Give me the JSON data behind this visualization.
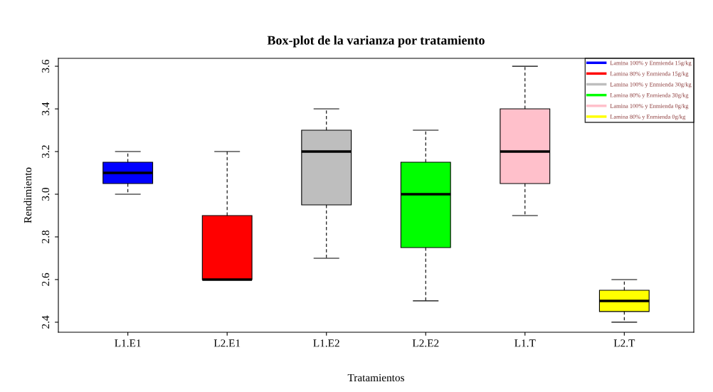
{
  "chart_data": {
    "type": "box",
    "title": "Box-plot de la varianza por tratamiento",
    "xlabel": "Tratamientos",
    "ylabel": "Rendimiento",
    "categories": [
      "L1.E1",
      "L2.E1",
      "L1.E2",
      "L2.E2",
      "L1.T",
      "L2.T"
    ],
    "ylim": [
      2.353,
      3.637
    ],
    "yticks": [
      2.4,
      2.6,
      2.8,
      {
        "value": 3.0,
        "label": "3.0"
      },
      3.2,
      3.4,
      3.6
    ],
    "grid": false,
    "legend": "top right",
    "series": [
      {
        "name": "Lamina 100% y Enmienda 15g/kg",
        "color": "#0000ff",
        "boxes": [
          {
            "low": 3.0,
            "q1": 3.05,
            "median": 3.1,
            "q3": 3.15,
            "high": 3.2
          },
          null,
          null,
          null,
          null,
          null
        ]
      },
      {
        "name": "Lamina 80% y Enmienda 15g/kg",
        "color": "#ff0000",
        "boxes": [
          null,
          {
            "low": 2.6,
            "q1": 2.6,
            "median": 2.6,
            "q3": 2.9,
            "high": 3.2
          },
          null,
          null,
          null,
          null
        ]
      },
      {
        "name": "Lamina 100% y Enmienda 30g/kg",
        "color": "#bebebe",
        "boxes": [
          null,
          null,
          {
            "low": 2.7,
            "q1": 2.95,
            "median": 3.2,
            "q3": 3.3,
            "high": 3.4
          },
          null,
          null,
          null
        ]
      },
      {
        "name": "Lamina 80% y Enmienda 30g/kg",
        "color": "#00ff00",
        "boxes": [
          null,
          null,
          null,
          {
            "low": 2.5,
            "q1": 2.75,
            "median": 3.0,
            "q3": 3.15,
            "high": 3.3
          },
          null,
          null
        ]
      },
      {
        "name": "Lamina 100% y Enmienda 0g/kg",
        "color": "#ffc0cb",
        "boxes": [
          null,
          null,
          null,
          null,
          {
            "low": 2.9,
            "q1": 3.05,
            "median": 3.2,
            "q3": 3.4,
            "high": 3.6
          },
          null
        ]
      },
      {
        "name": "Lamina 80% y Enmienda 0g/kg",
        "color": "#ffff00",
        "boxes": [
          null,
          null,
          null,
          null,
          null,
          {
            "low": 2.4,
            "q1": 2.45,
            "median": 2.5,
            "q3": 2.55,
            "high": 2.6
          }
        ]
      }
    ]
  }
}
